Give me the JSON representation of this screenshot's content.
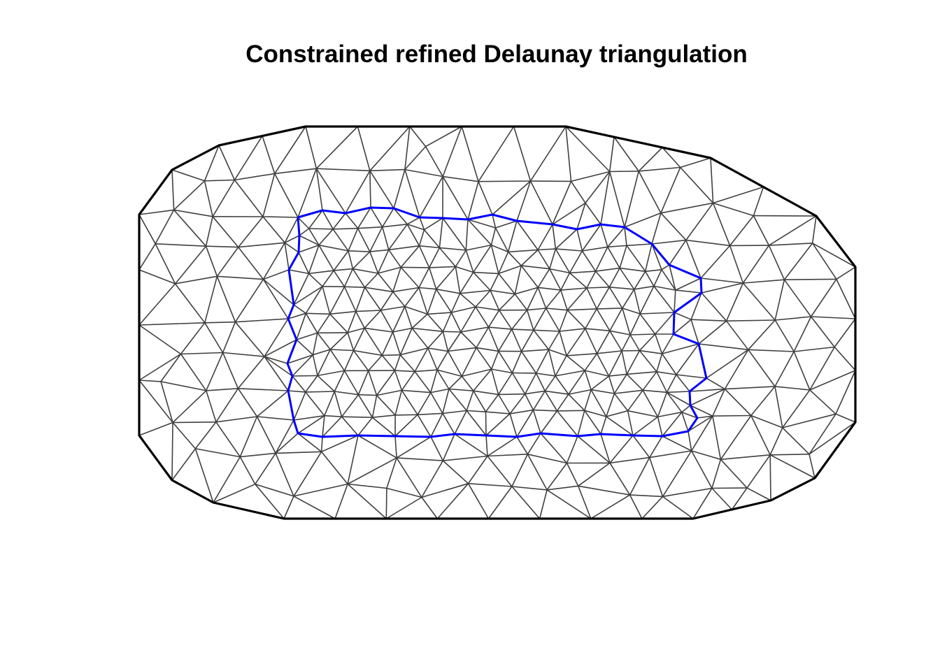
{
  "title": "Constrained refined Delaunay triangulation",
  "colors": {
    "background": "#ffffff",
    "mesh_edges": "#404040",
    "outer_boundary": "#000000",
    "inner_constraint": "#0000ff"
  },
  "mesh": {
    "element_type": "triangle",
    "outer_boundary_style": "thick black",
    "inner_constraint_style": "thick blue"
  }
}
